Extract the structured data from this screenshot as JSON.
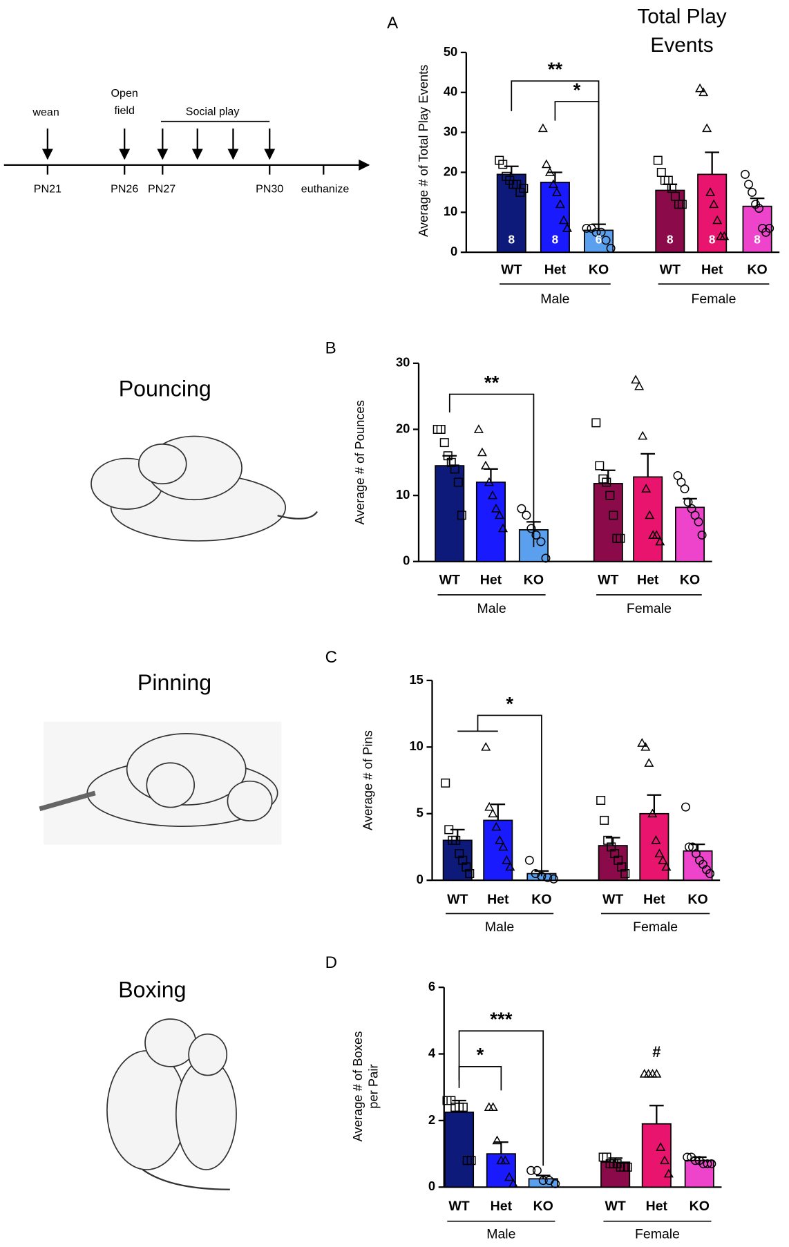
{
  "timeline": {
    "events": [
      "wean",
      "Social play"
    ],
    "open_field": [
      "Open",
      "field"
    ],
    "days": [
      "PN21",
      "PN26",
      "PN27",
      "PN30",
      "euthanize"
    ]
  },
  "illustrations": [
    "Pouncing",
    "Pinning",
    "Boxing"
  ],
  "chart_data": [
    {
      "type": "bar",
      "panel": "A",
      "title": "Total Play Events",
      "y_label": "Average # of Total Play Events",
      "categories": [
        "WT",
        "Het",
        "KO",
        "WT",
        "Het",
        "KO"
      ],
      "groups": [
        "Male",
        "Female"
      ],
      "values": [
        19.5,
        17.5,
        5.5,
        15.5,
        19.5,
        11.5
      ],
      "errors": [
        2,
        2.5,
        1.5,
        1.5,
        5.5,
        2
      ],
      "colors": [
        "#0d1a7a",
        "#1a1aff",
        "#5aa0ee",
        "#8b0a4a",
        "#e8146e",
        "#ee44cc"
      ],
      "markers": [
        "square",
        "triangle",
        "circle",
        "square",
        "triangle",
        "circle"
      ],
      "points": [
        [
          23,
          22,
          19,
          18,
          17,
          17,
          15,
          16
        ],
        [
          31,
          22,
          20,
          17,
          15,
          12,
          8,
          6
        ],
        [
          6,
          6,
          5,
          5,
          3,
          1
        ],
        [
          23,
          20,
          18,
          18,
          16,
          14,
          12,
          12
        ],
        [
          41,
          40,
          31,
          15,
          12,
          8,
          4,
          4
        ],
        [
          19.5,
          17,
          15,
          12,
          11,
          6,
          5,
          6
        ]
      ],
      "n_labels": [
        8,
        8,
        6,
        8,
        8,
        8
      ],
      "ylim": [
        0,
        50
      ],
      "yticks": [
        0,
        10,
        20,
        30,
        40,
        50
      ],
      "annotations": [
        "**",
        "*"
      ]
    },
    {
      "type": "bar",
      "panel": "B",
      "y_label": "Average # of Pounces",
      "categories": [
        "WT",
        "Het",
        "KO",
        "WT",
        "Het",
        "KO"
      ],
      "groups": [
        "Male",
        "Female"
      ],
      "values": [
        14.5,
        12,
        4.8,
        11.8,
        12.8,
        8.2
      ],
      "errors": [
        1.5,
        2,
        1.2,
        2,
        3.5,
        1.3
      ],
      "colors": [
        "#0d1a7a",
        "#1a1aff",
        "#5aa0ee",
        "#8b0a4a",
        "#e8146e",
        "#ee44cc"
      ],
      "markers": [
        "square",
        "triangle",
        "circle",
        "square",
        "triangle",
        "circle"
      ],
      "points": [
        [
          20,
          20,
          18,
          16,
          15,
          14,
          12,
          7
        ],
        [
          20,
          16.5,
          14.5,
          12,
          10,
          8,
          7,
          5
        ],
        [
          8,
          7,
          5,
          4,
          3,
          0.5
        ],
        [
          21,
          14.5,
          12.5,
          12,
          10,
          7,
          3.5,
          3.5
        ],
        [
          27.5,
          26.5,
          19,
          11,
          7,
          4,
          4,
          3
        ],
        [
          13,
          12,
          11,
          9,
          8,
          7,
          6,
          4
        ]
      ],
      "ylim": [
        0,
        30
      ],
      "yticks": [
        0,
        10,
        20,
        30
      ],
      "annotations": [
        "**"
      ]
    },
    {
      "type": "bar",
      "panel": "C",
      "y_label": "Average # of Pins",
      "categories": [
        "WT",
        "Het",
        "KO",
        "WT",
        "Het",
        "KO"
      ],
      "groups": [
        "Male",
        "Female"
      ],
      "values": [
        3,
        4.5,
        0.5,
        2.6,
        5,
        2.2
      ],
      "errors": [
        0.8,
        1.2,
        0.2,
        0.6,
        1.4,
        0.5
      ],
      "colors": [
        "#0d1a7a",
        "#1a1aff",
        "#5aa0ee",
        "#8b0a4a",
        "#e8146e",
        "#ee44cc"
      ],
      "markers": [
        "square",
        "triangle",
        "circle",
        "square",
        "triangle",
        "circle"
      ],
      "points": [
        [
          7.3,
          3.8,
          3,
          3,
          2,
          1.5,
          1,
          0.5
        ],
        [
          10,
          5.5,
          5,
          4,
          3,
          2.5,
          1.5,
          1
        ],
        [
          1.5,
          0.5,
          0.3,
          0.2,
          0.1
        ],
        [
          6,
          4.5,
          3,
          2.5,
          2,
          1.5,
          1,
          0.5
        ],
        [
          10.3,
          10,
          8.8,
          5,
          3,
          2,
          1.5,
          1
        ],
        [
          5.5,
          2.5,
          2.5,
          2,
          1.5,
          1.2,
          0.8,
          0.5
        ]
      ],
      "ylim": [
        0,
        15
      ],
      "yticks": [
        0,
        5,
        10,
        15
      ],
      "annotations": [
        "*"
      ]
    },
    {
      "type": "bar",
      "panel": "D",
      "y_label": [
        "Average # of Boxes",
        "per Pair"
      ],
      "categories": [
        "WT",
        "Het",
        "KO",
        "WT",
        "Het",
        "KO"
      ],
      "groups": [
        "Male",
        "Female"
      ],
      "values": [
        2.25,
        1,
        0.25,
        0.75,
        1.9,
        0.8
      ],
      "errors": [
        0.35,
        0.35,
        0.1,
        0.12,
        0.55,
        0.1
      ],
      "colors": [
        "#0d1a7a",
        "#1a1aff",
        "#5aa0ee",
        "#8b0a4a",
        "#e8146e",
        "#ee44cc"
      ],
      "markers": [
        "square",
        "triangle",
        "circle",
        "square",
        "triangle",
        "circle"
      ],
      "points": [
        [
          2.6,
          2.6,
          2.4,
          2.4,
          2.4,
          0.8,
          0.8
        ],
        [
          2.4,
          2.4,
          1.4,
          0.8,
          0.8,
          0.3,
          0.1
        ],
        [
          0.5,
          0.5,
          0.2,
          0.2,
          0.1
        ],
        [
          0.9,
          0.9,
          0.7,
          0.7,
          0.7,
          0.6,
          0.6,
          0.6
        ],
        [
          3.4,
          3.4,
          3.4,
          3.4,
          1.2,
          0.8,
          0.4
        ],
        [
          0.9,
          0.9,
          0.8,
          0.8,
          0.7,
          0.7,
          0.7
        ]
      ],
      "ylim": [
        0,
        6
      ],
      "yticks": [
        0,
        2,
        4,
        6
      ],
      "annotations": [
        "*",
        "***",
        "#"
      ]
    }
  ]
}
